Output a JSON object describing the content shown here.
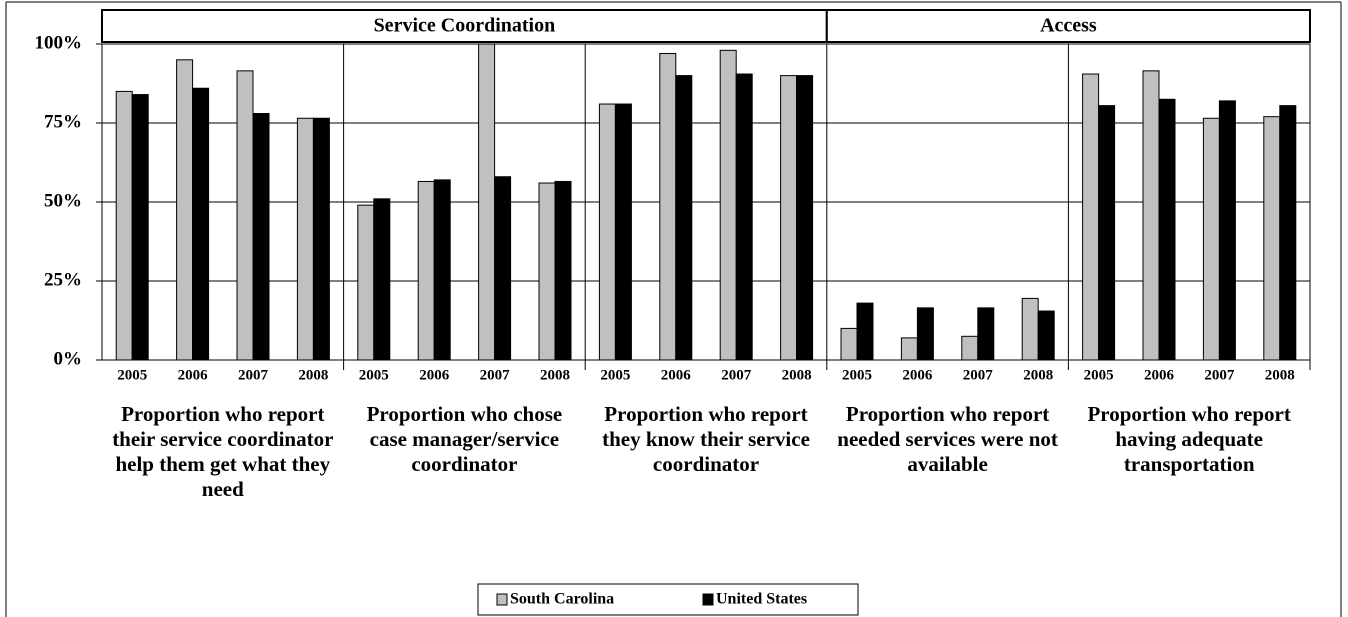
{
  "chart_data": {
    "type": "bar",
    "ylim": [
      0,
      100
    ],
    "yticks": [
      {
        "value": 0,
        "label": "0%"
      },
      {
        "value": 25,
        "label": "25%"
      },
      {
        "value": 50,
        "label": "50%"
      },
      {
        "value": 75,
        "label": "75%"
      },
      {
        "value": 100,
        "label": "100%"
      }
    ],
    "grid": true,
    "legend": "bottom",
    "series": [
      {
        "name": "South Carolina",
        "color": "#c0c0c0"
      },
      {
        "name": "United States",
        "color": "#000000"
      }
    ],
    "groups": [
      {
        "title": "Service Coordination",
        "panels": 3
      },
      {
        "title": "Access",
        "panels": 2
      }
    ],
    "panels": [
      {
        "title": "Proportion who report their service coordinator help them get what they need",
        "categories": [
          "2005",
          "2006",
          "2007",
          "2008"
        ],
        "series": [
          {
            "values": [
              85,
              95,
              91.5,
              76.5
            ]
          },
          {
            "values": [
              84,
              86,
              78,
              76.5
            ]
          }
        ]
      },
      {
        "title": "Proportion who chose case manager/service coordinator",
        "categories": [
          "2005",
          "2006",
          "2007",
          "2008"
        ],
        "series": [
          {
            "values": [
              49,
              56.5,
              100,
              56
            ]
          },
          {
            "values": [
              51,
              57,
              58,
              56.5
            ]
          }
        ]
      },
      {
        "title": "Proportion who report  they know their service coordinator",
        "categories": [
          "2005",
          "2006",
          "2007",
          "2008"
        ],
        "series": [
          {
            "values": [
              81,
              97,
              98,
              90
            ]
          },
          {
            "values": [
              81,
              90,
              90.5,
              90
            ]
          }
        ]
      },
      {
        "title": "Proportion who report needed services were not available",
        "categories": [
          "2005",
          "2006",
          "2007",
          "2008"
        ],
        "series": [
          {
            "values": [
              10,
              7,
              7.5,
              19.5
            ]
          },
          {
            "values": [
              18,
              16.5,
              16.5,
              15.5
            ]
          }
        ]
      },
      {
        "title": "Proportion who report having adequate transportation",
        "categories": [
          "2005",
          "2006",
          "2007",
          "2008"
        ],
        "series": [
          {
            "values": [
              90.5,
              91.5,
              76.5,
              77
            ]
          },
          {
            "values": [
              80.5,
              82.5,
              82,
              80.5
            ]
          }
        ]
      }
    ]
  }
}
